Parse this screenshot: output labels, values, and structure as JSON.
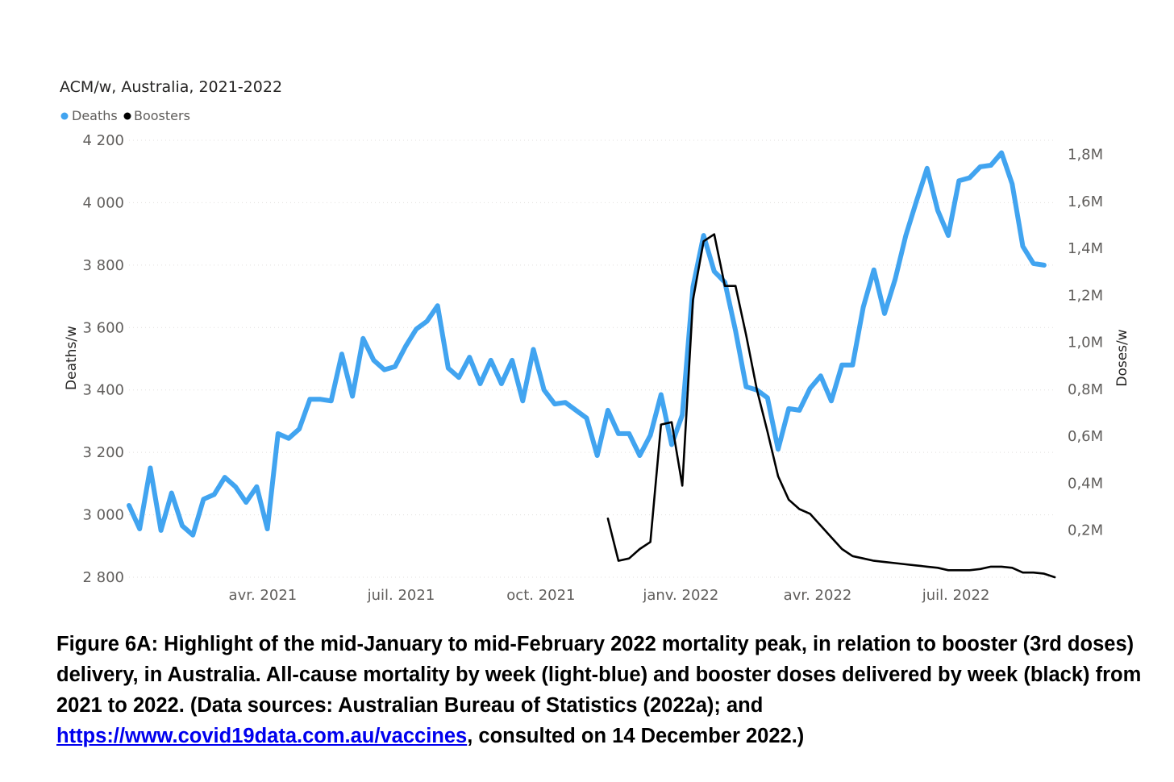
{
  "chart_data": {
    "type": "line",
    "title": "ACM/w, Australia, 2021-2022",
    "legend": [
      {
        "name": "Deaths",
        "color": "#41a4f0"
      },
      {
        "name": "Boosters",
        "color": "#000000"
      }
    ],
    "legend_position": "top-left",
    "ylabel": "Deaths/w",
    "y2label": "Doses/w",
    "ylim": [
      2800,
      4200
    ],
    "yticks": [
      2800,
      3000,
      3200,
      3400,
      3600,
      3800,
      4000,
      4200
    ],
    "ytick_labels": [
      "2 800",
      "3 000",
      "3 200",
      "3 400",
      "3 600",
      "3 800",
      "4 000",
      "4 200"
    ],
    "y2lim": [
      0,
      1.86
    ],
    "y2ticks": [
      0.2,
      0.4,
      0.6,
      0.8,
      1.0,
      1.2,
      1.4,
      1.6,
      1.8
    ],
    "y2tick_labels": [
      "0,2M",
      "0,4M",
      "0,6M",
      "0,8M",
      "1,0M",
      "1,2M",
      "1,4M",
      "1,6M",
      "1,8M"
    ],
    "xlim": [
      "2021-01-03",
      "2022-09-05"
    ],
    "xticks": [
      "2021-04-01",
      "2021-07-01",
      "2021-10-01",
      "2022-01-01",
      "2022-04-01",
      "2022-07-01"
    ],
    "xtick_labels": [
      "avr. 2021",
      "juil. 2021",
      "oct. 2021",
      "janv. 2022",
      "avr. 2022",
      "juil. 2022"
    ],
    "grid": true,
    "series": [
      {
        "name": "Deaths",
        "axis": "left",
        "color": "#41a4f0",
        "x": [
          "2021-01-03",
          "2021-01-10",
          "2021-01-17",
          "2021-01-24",
          "2021-01-31",
          "2021-02-07",
          "2021-02-14",
          "2021-02-21",
          "2021-02-28",
          "2021-03-07",
          "2021-03-14",
          "2021-03-21",
          "2021-03-28",
          "2021-04-04",
          "2021-04-11",
          "2021-04-18",
          "2021-04-25",
          "2021-05-02",
          "2021-05-09",
          "2021-05-16",
          "2021-05-23",
          "2021-05-30",
          "2021-06-06",
          "2021-06-13",
          "2021-06-20",
          "2021-06-27",
          "2021-07-04",
          "2021-07-11",
          "2021-07-18",
          "2021-07-25",
          "2021-08-01",
          "2021-08-08",
          "2021-08-15",
          "2021-08-22",
          "2021-08-29",
          "2021-09-05",
          "2021-09-12",
          "2021-09-19",
          "2021-09-26",
          "2021-10-03",
          "2021-10-10",
          "2021-10-17",
          "2021-10-24",
          "2021-10-31",
          "2021-11-07",
          "2021-11-14",
          "2021-11-21",
          "2021-11-28",
          "2021-12-05",
          "2021-12-12",
          "2021-12-19",
          "2021-12-26",
          "2022-01-02",
          "2022-01-09",
          "2022-01-16",
          "2022-01-23",
          "2022-01-30",
          "2022-02-06",
          "2022-02-13",
          "2022-02-20",
          "2022-02-27",
          "2022-03-06",
          "2022-03-13",
          "2022-03-20",
          "2022-03-27",
          "2022-04-03",
          "2022-04-10",
          "2022-04-17",
          "2022-04-24",
          "2022-05-01",
          "2022-05-08",
          "2022-05-15",
          "2022-05-22",
          "2022-05-29",
          "2022-06-05",
          "2022-06-12",
          "2022-06-19",
          "2022-06-26",
          "2022-07-03",
          "2022-07-10",
          "2022-07-17",
          "2022-07-24",
          "2022-07-31",
          "2022-08-07",
          "2022-08-14",
          "2022-08-21",
          "2022-08-28"
        ],
        "values": [
          3030,
          2955,
          3150,
          2950,
          3070,
          2965,
          2935,
          3050,
          3065,
          3120,
          3090,
          3040,
          3090,
          2955,
          3260,
          3245,
          3275,
          3370,
          3370,
          3365,
          3515,
          3380,
          3565,
          3495,
          3465,
          3475,
          3540,
          3595,
          3620,
          3670,
          3470,
          3440,
          3505,
          3420,
          3495,
          3420,
          3495,
          3365,
          3530,
          3400,
          3355,
          3360,
          3335,
          3310,
          3190,
          3335,
          3260,
          3260,
          3190,
          3255,
          3385,
          3225,
          3320,
          3730,
          3895,
          3780,
          3745,
          3590,
          3410,
          3400,
          3375,
          3210,
          3340,
          3335,
          3405,
          3445,
          3365,
          3480,
          3480,
          3665,
          3785,
          3645,
          3755,
          3895,
          4005,
          4110,
          3975,
          3895,
          4070,
          4080,
          4115,
          4120,
          4160,
          4060,
          3860,
          3805,
          3800
        ]
      },
      {
        "name": "Boosters",
        "axis": "right",
        "color": "#000000",
        "x": [
          "2021-11-14",
          "2021-11-21",
          "2021-11-28",
          "2021-12-05",
          "2021-12-12",
          "2021-12-19",
          "2021-12-26",
          "2022-01-02",
          "2022-01-09",
          "2022-01-16",
          "2022-01-23",
          "2022-01-30",
          "2022-02-06",
          "2022-02-13",
          "2022-02-20",
          "2022-02-27",
          "2022-03-06",
          "2022-03-13",
          "2022-03-20",
          "2022-03-27",
          "2022-04-03",
          "2022-04-10",
          "2022-04-17",
          "2022-04-24",
          "2022-05-01",
          "2022-05-08",
          "2022-05-15",
          "2022-05-22",
          "2022-05-29",
          "2022-06-05",
          "2022-06-12",
          "2022-06-19",
          "2022-06-26",
          "2022-07-03",
          "2022-07-10",
          "2022-07-17",
          "2022-07-24",
          "2022-07-31",
          "2022-08-07",
          "2022-08-14",
          "2022-08-21",
          "2022-08-28",
          "2022-09-04"
        ],
        "values": [
          0.25,
          0.07,
          0.08,
          0.12,
          0.15,
          0.65,
          0.66,
          0.39,
          1.18,
          1.43,
          1.46,
          1.24,
          1.24,
          1.03,
          0.8,
          0.62,
          0.43,
          0.33,
          0.29,
          0.27,
          0.22,
          0.17,
          0.12,
          0.09,
          0.08,
          0.07,
          0.065,
          0.06,
          0.055,
          0.05,
          0.045,
          0.04,
          0.03,
          0.03,
          0.03,
          0.035,
          0.045,
          0.045,
          0.04,
          0.02,
          0.02,
          0.015,
          0.0
        ]
      }
    ]
  },
  "caption": {
    "text_before": "Figure 6A: Highlight of the mid-January to mid-February 2022 mortality peak, in relation to booster (3rd doses) delivery, in Australia. All-cause mortality by week (light-blue) and booster doses delivered by week (black) from 2021 to 2022. (Data sources: Australian Bureau of Statistics (2022a); and ",
    "link_text": "https://www.covid19data.com.au/vaccines",
    "text_after": ", consulted on 14 December 2022.)"
  }
}
